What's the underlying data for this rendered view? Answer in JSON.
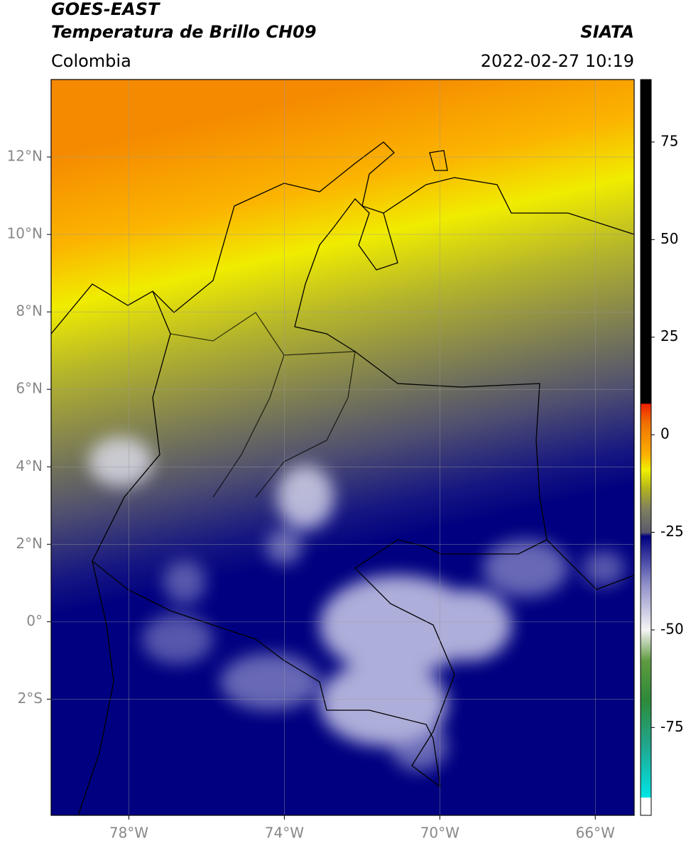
{
  "header": {
    "title": "GOES-EAST",
    "subtitle": "Temperatura de Brillo CH09",
    "brand": "SIATA",
    "region": "Colombia",
    "datetime": "2022-02-27 10:19"
  },
  "map": {
    "xlim": [
      -80,
      -65
    ],
    "ylim": [
      -5,
      14
    ],
    "xticks": [
      {
        "value": -78,
        "label": "78°W"
      },
      {
        "value": -74,
        "label": "74°W"
      },
      {
        "value": -70,
        "label": "70°W"
      },
      {
        "value": -66,
        "label": "66°W"
      }
    ],
    "yticks": [
      {
        "value": 12,
        "label": "12°N"
      },
      {
        "value": 10,
        "label": "10°N"
      },
      {
        "value": 8,
        "label": "8°N"
      },
      {
        "value": 6,
        "label": "6°N"
      },
      {
        "value": 4,
        "label": "4°N"
      },
      {
        "value": 2,
        "label": "2°N"
      },
      {
        "value": 0,
        "label": "0°"
      },
      {
        "value": -2,
        "label": "2°S"
      }
    ],
    "grid": true
  },
  "colorbar": {
    "lim": [
      -97.5,
      91
    ],
    "ticks": [
      75,
      50,
      25,
      0,
      -25,
      -50,
      -75
    ],
    "colormap": [
      {
        "value": -97.5,
        "color": "#ffffff"
      },
      {
        "value": -93,
        "color": "#ffffff"
      },
      {
        "value": -92.9,
        "color": "#00e5e5"
      },
      {
        "value": -80,
        "color": "#20a890"
      },
      {
        "value": -68,
        "color": "#2e8a3a"
      },
      {
        "value": -58,
        "color": "#5f9a40"
      },
      {
        "value": -50,
        "color": "#f4f4f4"
      },
      {
        "value": -38,
        "color": "#8c8cc8"
      },
      {
        "value": -26,
        "color": "#000080"
      },
      {
        "value": -25,
        "color": "#5a5a6a"
      },
      {
        "value": -19,
        "color": "#808060"
      },
      {
        "value": -14,
        "color": "#b0b020"
      },
      {
        "value": -9,
        "color": "#f0f000"
      },
      {
        "value": -5,
        "color": "#fbb000"
      },
      {
        "value": 3,
        "color": "#f07000"
      },
      {
        "value": 7.9,
        "color": "#f02000"
      },
      {
        "value": 8,
        "color": "#000000"
      },
      {
        "value": 91,
        "color": "#000000"
      }
    ]
  }
}
